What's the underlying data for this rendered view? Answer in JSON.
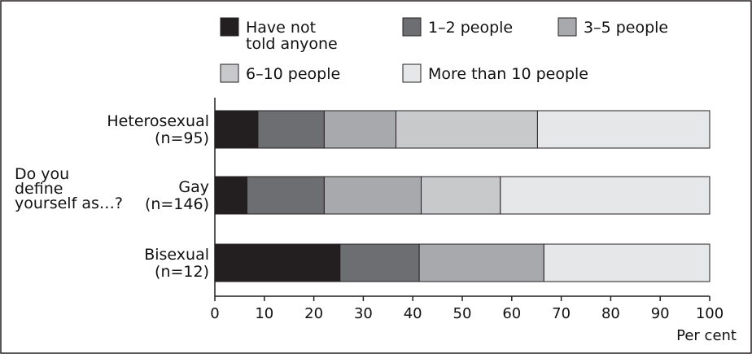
{
  "chart_data": {
    "type": "bar",
    "orientation": "horizontal",
    "stacked": true,
    "title": "",
    "ylabel": "Do you define yourself as…?",
    "xlabel": "Per cent",
    "xlim": [
      0,
      100
    ],
    "xticks": [
      0,
      10,
      20,
      30,
      40,
      50,
      60,
      70,
      80,
      90,
      100
    ],
    "grid": false,
    "legend_position": "top",
    "categories": [
      {
        "label": "Heterosexual",
        "n": "(n=95)"
      },
      {
        "label": "Gay",
        "n": "(n=146)"
      },
      {
        "label": "Bisexual",
        "n": "(n=12)"
      }
    ],
    "series": [
      {
        "name": "Have not told anyone",
        "color": "#231f20",
        "values": [
          8.7,
          6.5,
          25.3
        ]
      },
      {
        "name": "1–2 people",
        "color": "#6d6e71",
        "values": [
          13.4,
          15.6,
          16.0
        ]
      },
      {
        "name": "3–5 people",
        "color": "#a7a9ac",
        "values": [
          14.5,
          19.6,
          25.2
        ]
      },
      {
        "name": "6–10 people",
        "color": "#c8c9cb",
        "values": [
          28.6,
          16.0,
          0
        ]
      },
      {
        "name": "More than 10 people",
        "color": "#e6e7e8",
        "values": [
          34.8,
          42.3,
          33.5
        ]
      }
    ],
    "legend_display": [
      [
        "Have not",
        "told anyone"
      ],
      [
        "1–2 people"
      ],
      [
        "3–5 people"
      ],
      [
        "6–10 people"
      ],
      [
        "More than 10 people"
      ]
    ],
    "ylabel_lines": [
      "Do you",
      "define",
      "yourself as…?"
    ]
  }
}
